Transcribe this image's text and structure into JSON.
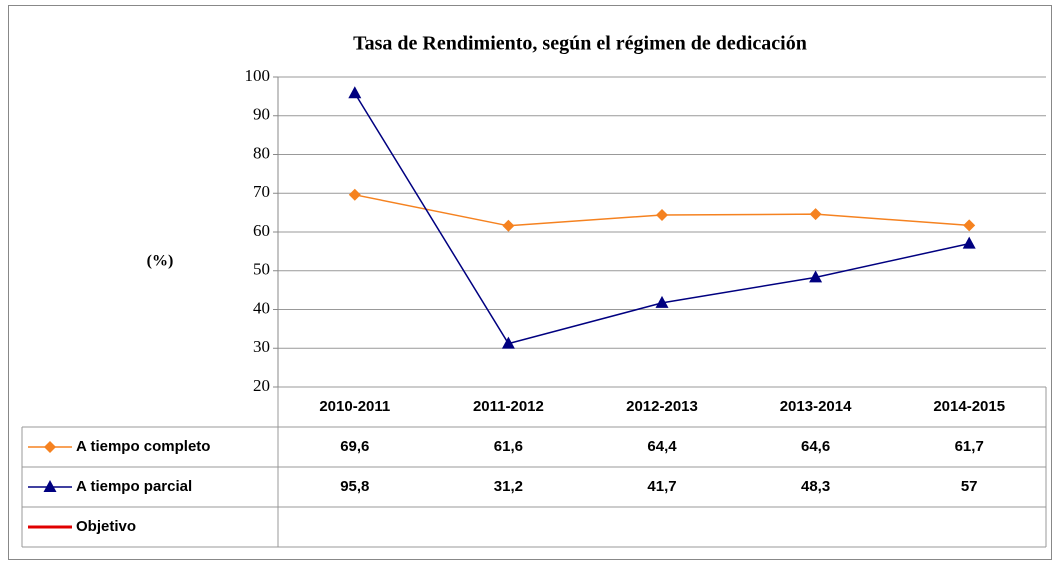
{
  "chart_data": {
    "type": "line",
    "title": "Tasa de Rendimiento, según el régimen de dedicación",
    "y_label": "(%)",
    "categories": [
      "2010-2011",
      "2011-2012",
      "2012-2013",
      "2013-2014",
      "2014-2015"
    ],
    "series": [
      {
        "name": "A tiempo completo",
        "color": "#f58220",
        "marker": "diamond",
        "values": [
          69.6,
          61.6,
          64.4,
          64.6,
          61.7
        ],
        "value_labels": [
          "69,6",
          "61,6",
          "64,4",
          "64,6",
          "61,7"
        ]
      },
      {
        "name": "A tiempo parcial",
        "color": "#000080",
        "marker": "triangle",
        "values": [
          95.8,
          31.2,
          41.7,
          48.3,
          57
        ],
        "value_labels": [
          "95,8",
          "31,2",
          "41,7",
          "48,3",
          "57"
        ]
      },
      {
        "name": "Objetivo",
        "color": "#e00000",
        "marker": "none",
        "values": [
          null,
          null,
          null,
          null,
          null
        ]
      }
    ],
    "ylim": [
      20,
      100
    ],
    "yticks": [
      20,
      30,
      40,
      50,
      60,
      70,
      80,
      90,
      100
    ],
    "grid": true
  }
}
